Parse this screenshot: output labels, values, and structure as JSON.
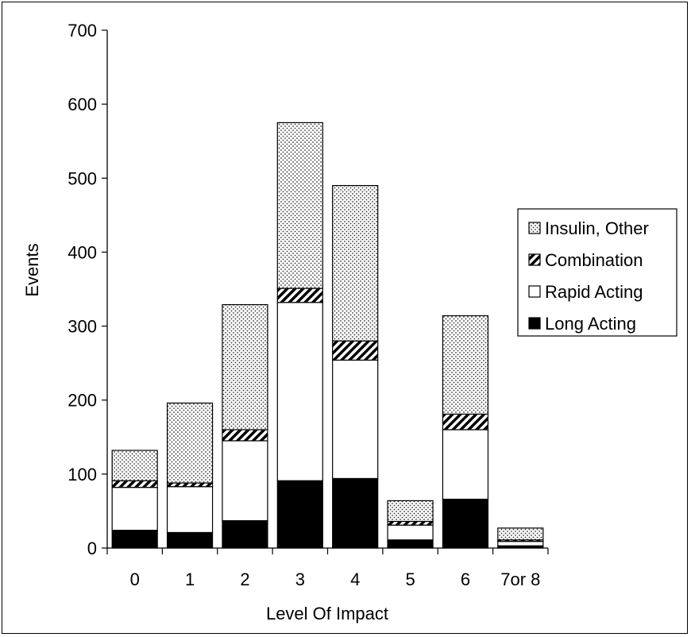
{
  "chart_data": {
    "type": "bar",
    "stacked": true,
    "xlabel": "Level Of Impact",
    "ylabel": "Events",
    "ylim": [
      0,
      700
    ],
    "yticks": [
      0,
      100,
      200,
      300,
      400,
      500,
      600,
      700
    ],
    "categories": [
      "0",
      "1",
      "2",
      "3",
      "4",
      "5",
      "6",
      "7or 8"
    ],
    "series": [
      {
        "name": "Long Acting",
        "pattern": "solid-black",
        "values": [
          24,
          21,
          37,
          91,
          94,
          11,
          66,
          3
        ]
      },
      {
        "name": "Rapid Acting",
        "pattern": "white",
        "values": [
          58,
          62,
          108,
          241,
          160,
          20,
          94,
          6
        ]
      },
      {
        "name": "Combination",
        "pattern": "diagonal-hatch",
        "values": [
          9,
          5,
          15,
          19,
          26,
          5,
          21,
          2
        ]
      },
      {
        "name": "Insulin, Other",
        "pattern": "dots",
        "values": [
          41,
          108,
          169,
          224,
          210,
          28,
          133,
          16
        ]
      }
    ],
    "legend": {
      "position": "right",
      "order": [
        "Insulin, Other",
        "Combination",
        "Rapid Acting",
        "Long Acting"
      ]
    },
    "grid": false
  }
}
